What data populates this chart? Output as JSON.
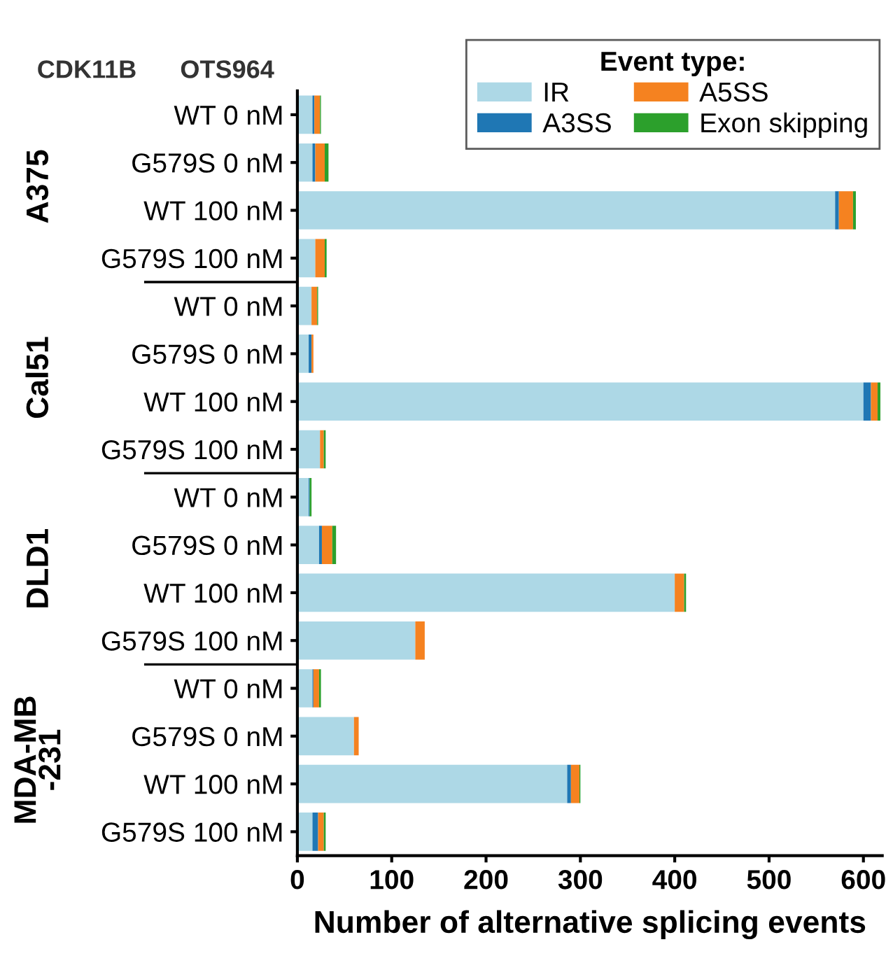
{
  "chart_data": {
    "type": "bar",
    "orientation": "horizontal",
    "stacked": true,
    "xlabel": "Number of alternative splicing events",
    "legend_title": "Event type:",
    "legend": "top right",
    "grid": false,
    "annotations": [
      "CDK11B",
      "OTS964",
      "A375",
      "Cal51",
      "DLD1",
      "MDA-MB\n-231"
    ],
    "categories": [
      "WT 0 nM",
      "G579S 0 nM",
      "WT 100 nM",
      "G579S 100 nM",
      "WT 0 nM",
      "G579S 0 nM",
      "WT 100 nM",
      "G579S 100 nM",
      "WT 0 nM",
      "G579S 0 nM",
      "WT 100 nM",
      "G579S 100 nM",
      "WT 0 nM",
      "G579S 0 nM",
      "WT 100 nM",
      "G579S 100 nM"
    ],
    "xlim": [
      0,
      620
    ],
    "xticks": [
      0,
      100,
      200,
      300,
      400,
      500,
      600
    ],
    "series": [
      {
        "name": "IR",
        "color": "#add8e6",
        "values": [
          16,
          16,
          570,
          19,
          15,
          12,
          600,
          24,
          12,
          23,
          400,
          125,
          16,
          60,
          286,
          16
        ]
      },
      {
        "name": "A3SS",
        "color": "#1f77b4",
        "values": [
          2,
          3,
          4,
          0,
          0,
          3,
          8,
          0,
          1,
          3,
          0,
          0,
          1,
          0,
          4,
          6
        ]
      },
      {
        "name": "A5SS",
        "color": "#f58220",
        "values": [
          6,
          10,
          15,
          10,
          6,
          2,
          7,
          4,
          0,
          11,
          10,
          10,
          6,
          5,
          9,
          6
        ]
      },
      {
        "name": "Exon skipping",
        "color": "#2ca02c",
        "values": [
          1,
          4,
          3,
          2,
          1,
          0,
          3,
          2,
          2,
          4,
          2,
          0,
          2,
          0,
          1,
          2
        ]
      }
    ]
  }
}
